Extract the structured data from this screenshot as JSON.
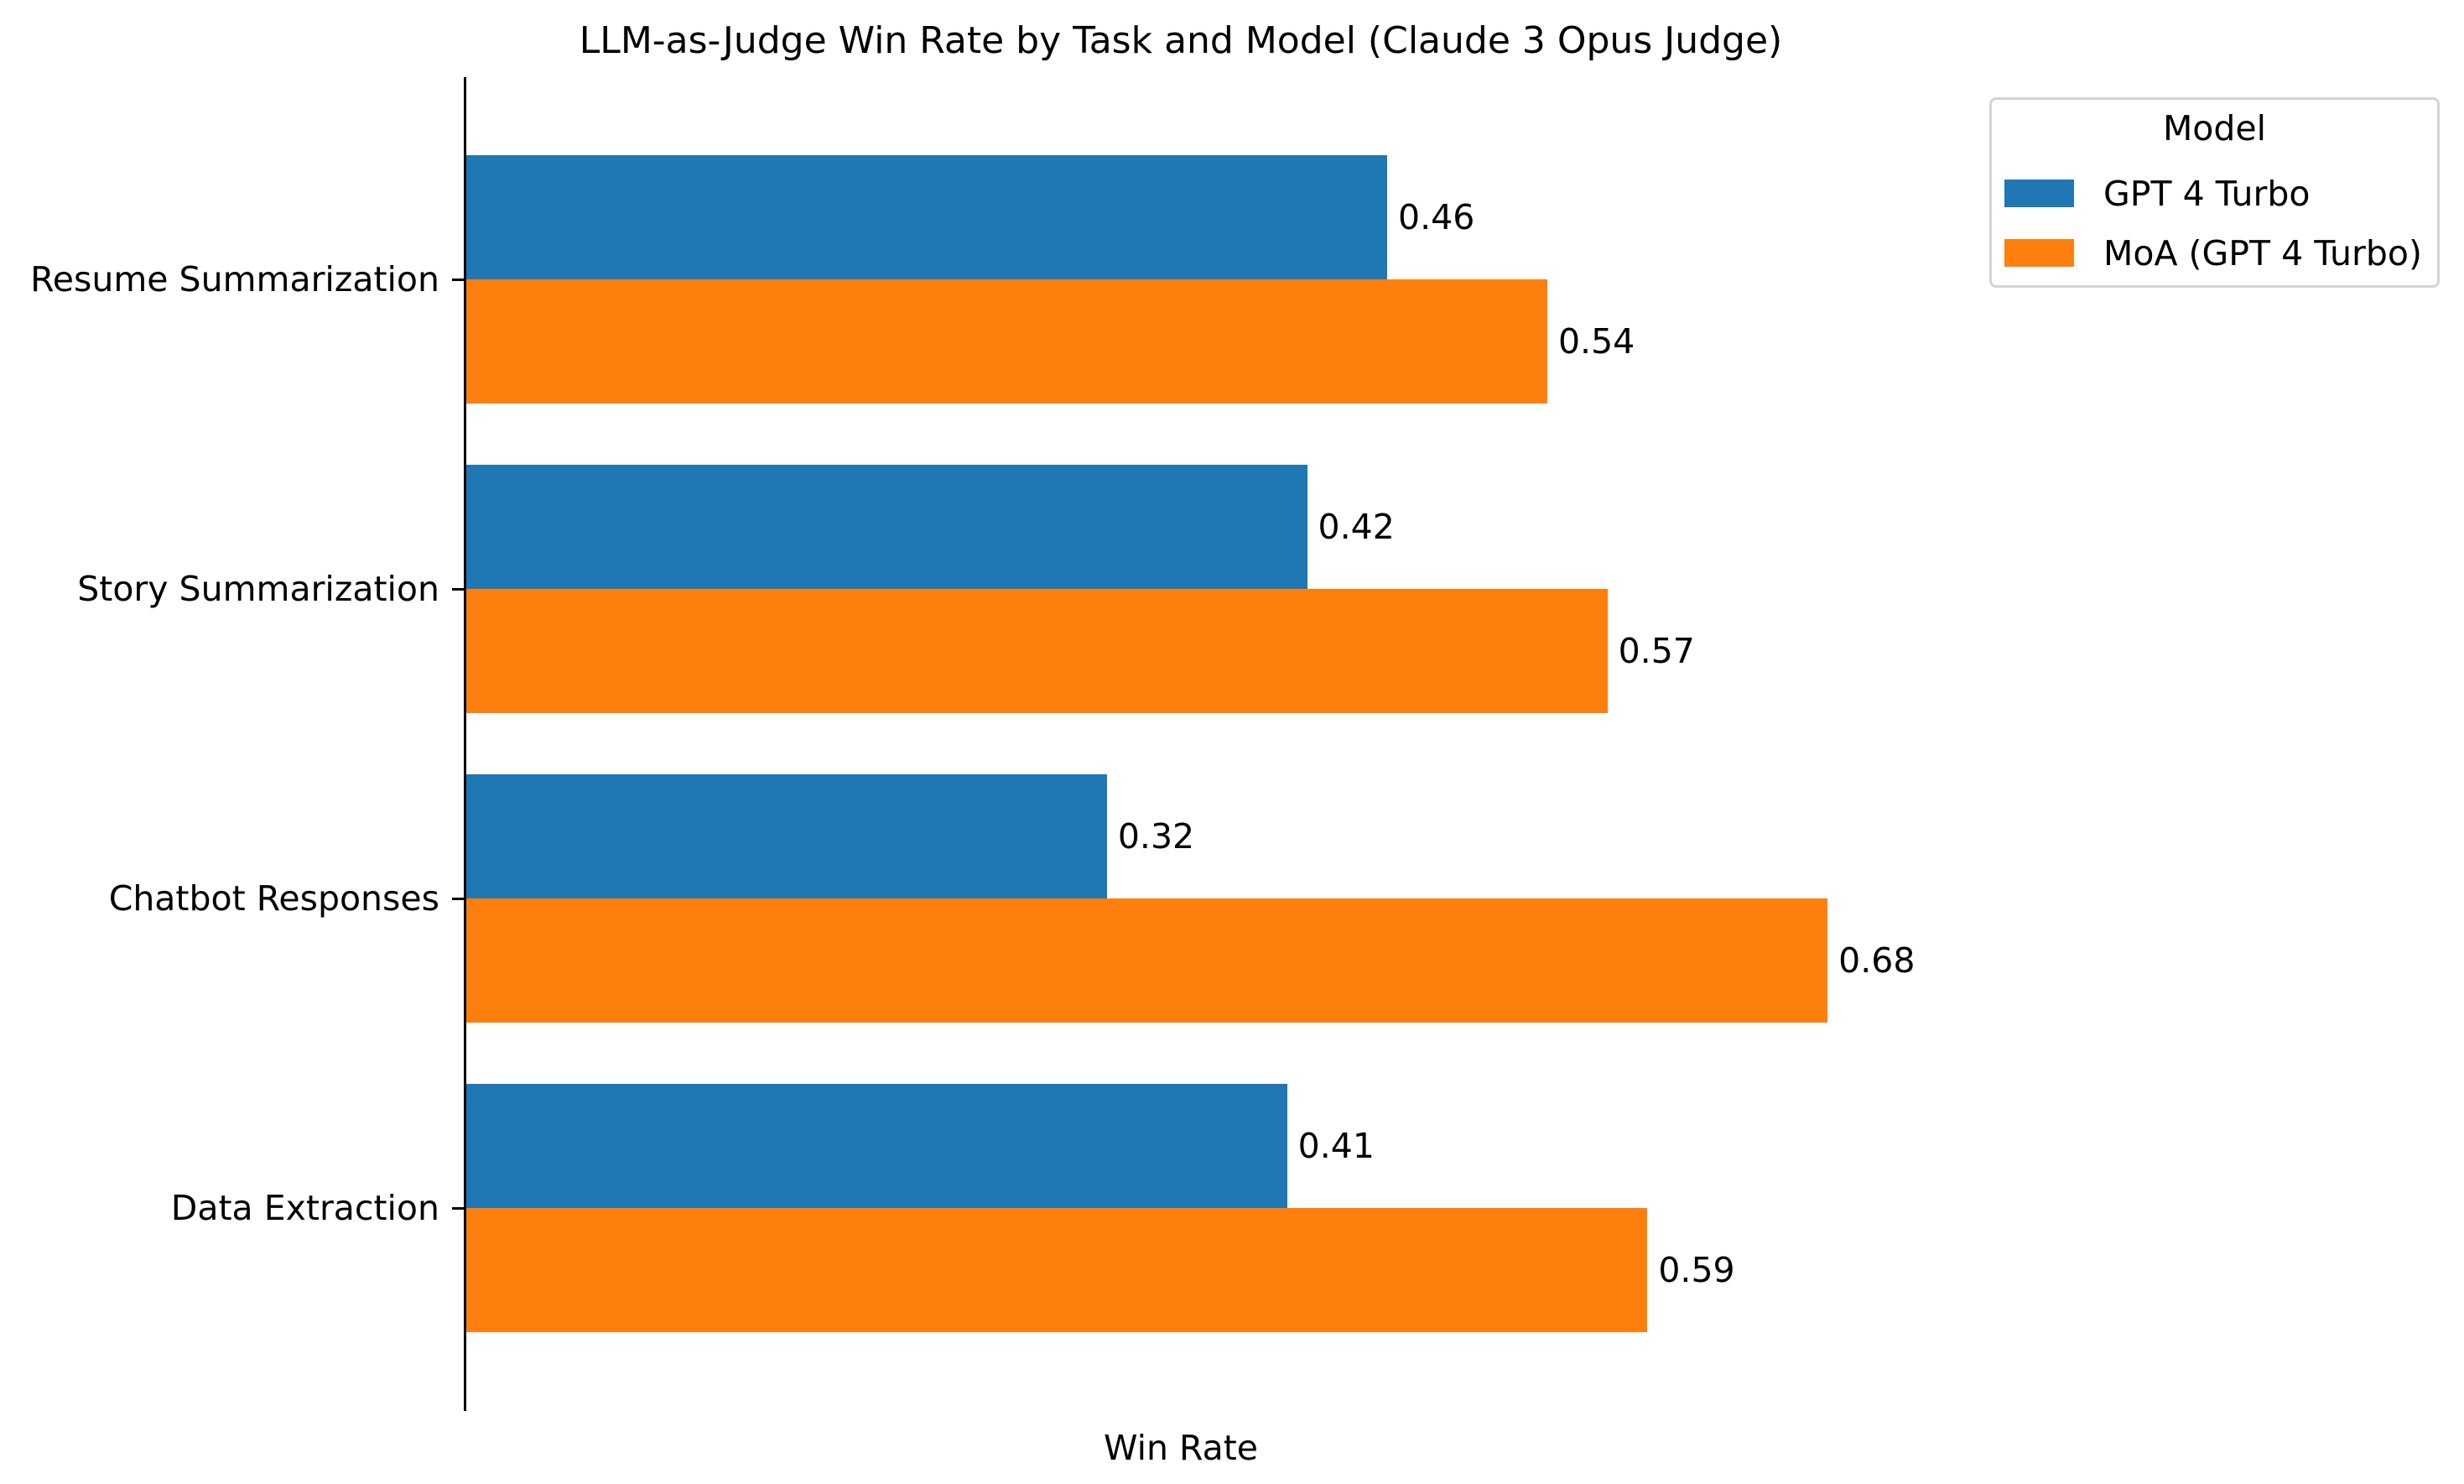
{
  "chart_data": {
    "type": "bar",
    "orientation": "horizontal",
    "title": "LLM-as-Judge Win Rate by Task and Model (Claude 3 Opus Judge)",
    "xlabel": "Win Rate",
    "ylabel": "",
    "categories": [
      "Resume Summarization",
      "Story Summarization",
      "Chatbot Responses",
      "Data Extraction"
    ],
    "series": [
      {
        "name": "GPT 4 Turbo",
        "color": "#1f77b4",
        "values": [
          0.46,
          0.42,
          0.32,
          0.41
        ],
        "labels": [
          "0.46",
          "0.42",
          "0.32",
          "0.41"
        ]
      },
      {
        "name": "MoA (GPT 4 Turbo)",
        "color": "#ff7f0e",
        "values": [
          0.54,
          0.57,
          0.68,
          0.59
        ],
        "labels": [
          "0.54",
          "0.57",
          "0.68",
          "0.59"
        ]
      }
    ],
    "xlim": [
      0,
      0.715
    ],
    "x_ticks_visible": false,
    "grid": false,
    "legend": {
      "title": "Model",
      "position": "upper right, outside axes"
    }
  },
  "legend": {
    "title": "Model",
    "items": [
      {
        "label": "GPT 4 Turbo",
        "color": "#1f77b4"
      },
      {
        "label": "MoA (GPT 4 Turbo)",
        "color": "#ff7f0e"
      }
    ]
  }
}
